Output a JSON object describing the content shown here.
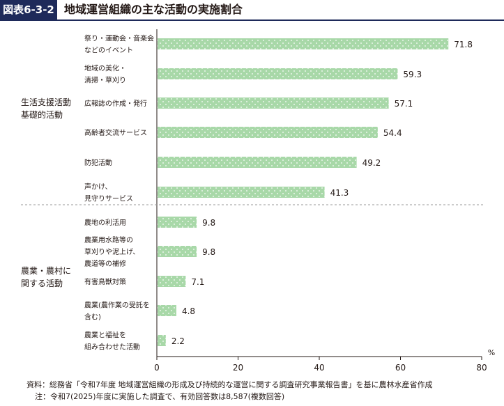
{
  "header": {
    "figure_tag": "図表6-3-2",
    "title": "地域運営組織の主な活動の実施割合"
  },
  "colors": {
    "bar_fill": "#a8d8a8",
    "bar_dot": "#ffffff",
    "title_bg": "#1e2a5a",
    "axis": "#231815",
    "divider": "#999999"
  },
  "chart_data": {
    "type": "bar",
    "orientation": "horizontal",
    "unit": "%",
    "xlim": [
      0,
      80
    ],
    "xticks": [
      0,
      20,
      40,
      60,
      80
    ],
    "groups": [
      {
        "label": [
          "生活支援活動",
          "基礎的活動"
        ],
        "items": [
          {
            "label": [
              "祭り・運動会・音楽会",
              "などのイベント"
            ],
            "value": 71.8
          },
          {
            "label": [
              "地域の美化・",
              "清掃・草刈り"
            ],
            "value": 59.3
          },
          {
            "label": [
              "広報誌の作成・発行"
            ],
            "value": 57.1
          },
          {
            "label": [
              "高齢者交流サービス"
            ],
            "value": 54.4
          },
          {
            "label": [
              "防犯活動"
            ],
            "value": 49.2
          },
          {
            "label": [
              "声かけ、",
              "見守りサービス"
            ],
            "value": 41.3
          }
        ]
      },
      {
        "label": [
          "農業・農村に",
          "関する活動"
        ],
        "items": [
          {
            "label": [
              "農地の利活用"
            ],
            "value": 9.8
          },
          {
            "label": [
              "農業用水路等の",
              "草刈りや泥上げ、",
              "農道等の補修"
            ],
            "value": 9.8
          },
          {
            "label": [
              "有害鳥獣対策"
            ],
            "value": 7.1
          },
          {
            "label": [
              "農業(農作業の受託を",
              "含む)"
            ],
            "value": 4.8
          },
          {
            "label": [
              "農業と福祉を",
              "組み合わせた活動"
            ],
            "value": 2.2
          }
        ]
      }
    ]
  },
  "notes": {
    "source": "資料：総務省「令和7年度 地域運営組織の形成及び持続的な運営に関する調査研究事業報告書」を基に農林水産省作成",
    "note": "注：令和7(2025)年度に実施した調査で、有効回答数は8,587(複数回答)"
  }
}
